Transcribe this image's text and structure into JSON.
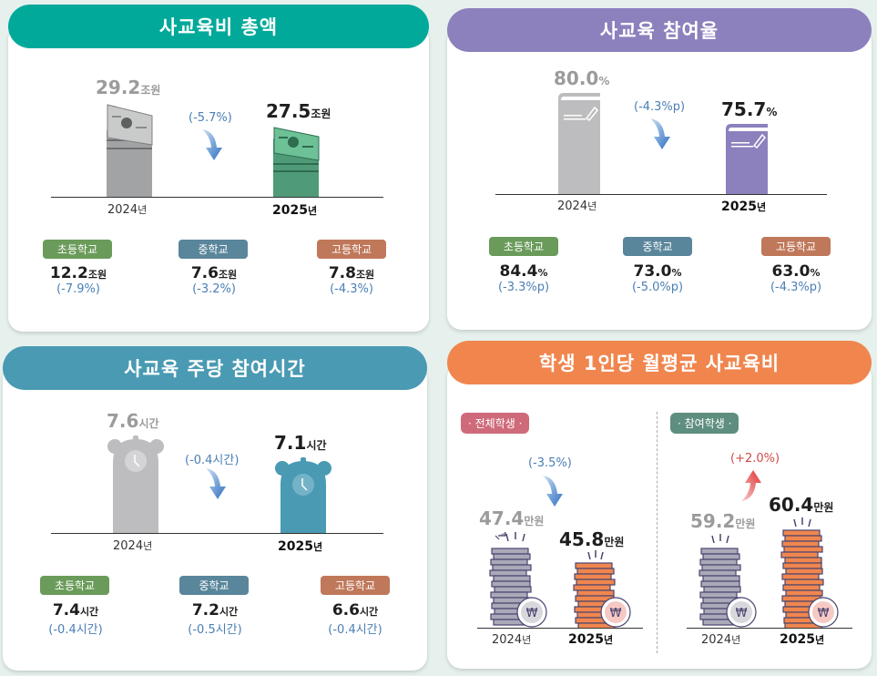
{
  "colors": {
    "teal": "#00a99a",
    "purple": "#8c80bd",
    "blue": "#4a9ab3",
    "orange": "#f0864e",
    "elem": "#6a9b5a",
    "middle": "#5a869b",
    "high": "#c0785a",
    "down": "#4a7fb5",
    "up": "#d04a4a"
  },
  "years": {
    "prev": "2024",
    "cur": "2025",
    "suffix": "년"
  },
  "total": {
    "title": "사교육비 총액",
    "prev": {
      "value": "29.2",
      "unit": "조원"
    },
    "cur": {
      "value": "27.5",
      "unit": "조원"
    },
    "change": "(-5.7%)",
    "schools": [
      {
        "label": "초등학교",
        "value": "12.2",
        "unit": "조원",
        "change": "(-7.9%)"
      },
      {
        "label": "중학교",
        "value": "7.6",
        "unit": "조원",
        "change": "(-3.2%)"
      },
      {
        "label": "고등학교",
        "value": "7.8",
        "unit": "조원",
        "change": "(-4.3%)"
      }
    ]
  },
  "participation": {
    "title": "사교육 참여율",
    "prev": {
      "value": "80.0",
      "unit": "%"
    },
    "cur": {
      "value": "75.7",
      "unit": "%"
    },
    "change": "(-4.3%p)",
    "schools": [
      {
        "label": "초등학교",
        "value": "84.4",
        "unit": "%",
        "change": "(-3.3%p)"
      },
      {
        "label": "중학교",
        "value": "73.0",
        "unit": "%",
        "change": "(-5.0%p)"
      },
      {
        "label": "고등학교",
        "value": "63.0",
        "unit": "%",
        "change": "(-4.3%p)"
      }
    ]
  },
  "hours": {
    "title": "사교육 주당 참여시간",
    "prev": {
      "value": "7.6",
      "unit": "시간"
    },
    "cur": {
      "value": "7.1",
      "unit": "시간"
    },
    "change": "(-0.4시간)",
    "schools": [
      {
        "label": "초등학교",
        "value": "7.4",
        "unit": "시간",
        "change": "(-0.4시간)"
      },
      {
        "label": "중학교",
        "value": "7.2",
        "unit": "시간",
        "change": "(-0.5시간)"
      },
      {
        "label": "고등학교",
        "value": "6.6",
        "unit": "시간",
        "change": "(-0.4시간)"
      }
    ]
  },
  "monthly": {
    "title": "학생 1인당 월평균 사교육비",
    "all": {
      "label": "· 전체학생 ·",
      "prev": {
        "value": "47.4",
        "unit": "만원"
      },
      "cur": {
        "value": "45.8",
        "unit": "만원"
      },
      "change": "(-3.5%)"
    },
    "participants": {
      "label": "· 참여학생 ·",
      "prev": {
        "value": "59.2",
        "unit": "만원"
      },
      "cur": {
        "value": "60.4",
        "unit": "만원"
      },
      "change": "(+2.0%)"
    },
    "coin_symbol": "₩"
  }
}
